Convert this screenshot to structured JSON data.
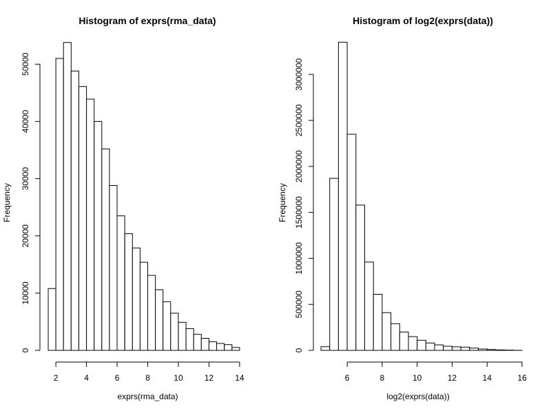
{
  "chart_data": [
    {
      "type": "bar",
      "title": "Histogram of exprs(rma_data)",
      "xlabel": "exprs(rma_data)",
      "ylabel": "Frequency",
      "xlim": [
        1.5,
        14.5
      ],
      "ylim": [
        0,
        54000
      ],
      "x_ticks": [
        2,
        4,
        6,
        8,
        10,
        12,
        14
      ],
      "y_ticks": [
        0,
        10000,
        20000,
        30000,
        40000,
        50000
      ],
      "bin_edges": [
        1.5,
        2.0,
        2.5,
        3.0,
        3.5,
        4.0,
        4.5,
        5.0,
        5.5,
        6.0,
        6.5,
        7.0,
        7.5,
        8.0,
        8.5,
        9.0,
        9.5,
        10.0,
        10.5,
        11.0,
        11.5,
        12.0,
        12.5,
        13.0,
        13.5,
        14.0
      ],
      "values": [
        10800,
        51000,
        53800,
        48800,
        46100,
        43900,
        40000,
        35200,
        28800,
        23500,
        20400,
        17900,
        15400,
        13100,
        10600,
        8500,
        6500,
        4900,
        3800,
        2800,
        2100,
        1500,
        1200,
        1000,
        500
      ],
      "grid": false
    },
    {
      "type": "bar",
      "title": "Histogram of log2(exprs(data))",
      "xlabel": "log2(exprs(data))",
      "ylabel": "Frequency",
      "xlim": [
        4.5,
        16.0
      ],
      "ylim": [
        0,
        3360000
      ],
      "x_ticks": [
        6,
        8,
        10,
        12,
        14,
        16
      ],
      "y_ticks": [
        0,
        500000,
        1000000,
        1500000,
        2000000,
        2500000,
        3000000
      ],
      "bin_edges": [
        4.5,
        5.0,
        5.5,
        6.0,
        6.5,
        7.0,
        7.5,
        8.0,
        8.5,
        9.0,
        9.5,
        10.0,
        10.5,
        11.0,
        11.5,
        12.0,
        12.5,
        13.0,
        13.5,
        14.0,
        14.5,
        15.0,
        15.5,
        16.0
      ],
      "values": [
        40000,
        1870000,
        3350000,
        2350000,
        1580000,
        960000,
        610000,
        410000,
        290000,
        200000,
        150000,
        110000,
        80000,
        60000,
        45000,
        38000,
        35000,
        25000,
        15000,
        10000,
        5000,
        3000,
        1000
      ],
      "grid": false
    }
  ]
}
